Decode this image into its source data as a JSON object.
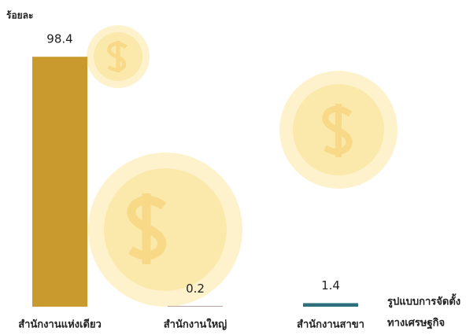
{
  "chart_data": {
    "type": "bar",
    "ylabel": "ร้อยละ",
    "xlabel": [
      "รูปแบบการจัดตั้ง",
      "ทางเศรษฐกิจ"
    ],
    "categories": [
      "สำนักงานแห่งเดียว",
      "สำนักงานใหญ่",
      "สำนักงานสาขา"
    ],
    "values": [
      98.4,
      0.2,
      1.4
    ],
    "colors": [
      "#c99a2e",
      "#b9a3a3",
      "#2e6f7e"
    ],
    "ylim": [
      0,
      100
    ]
  }
}
